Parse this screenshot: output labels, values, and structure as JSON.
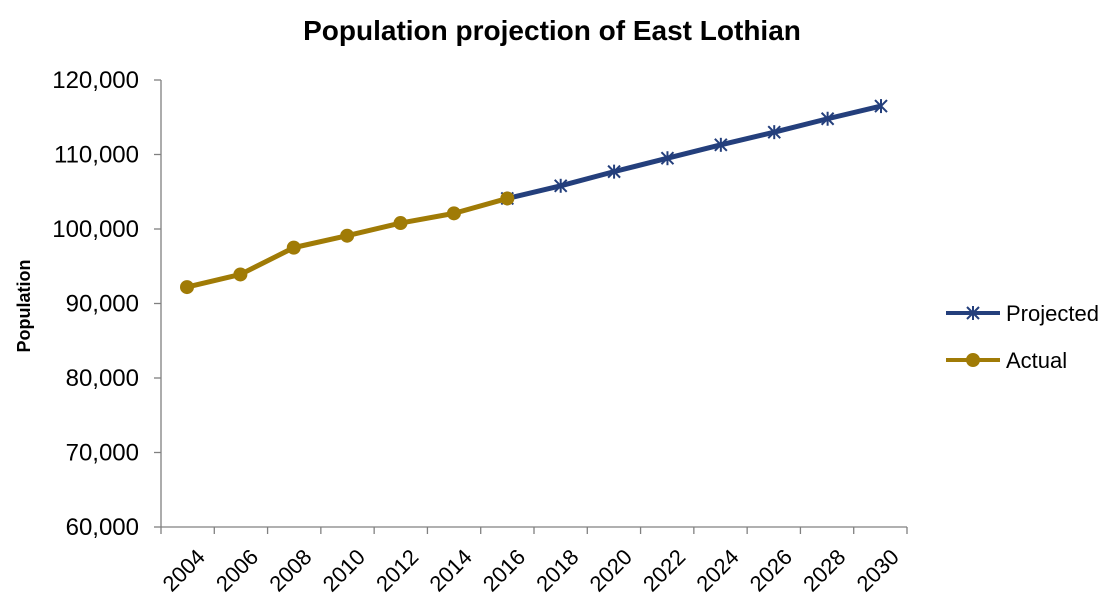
{
  "chart_data": {
    "type": "line",
    "title": "Population projection of East Lothian",
    "xlabel": "",
    "ylabel": "Population",
    "ylim": [
      60000,
      120000
    ],
    "yticks": [
      "60,000",
      "70,000",
      "80,000",
      "90,000",
      "100,000",
      "110,000",
      "120,000"
    ],
    "x": [
      2004,
      2006,
      2008,
      2010,
      2012,
      2014,
      2016,
      2018,
      2020,
      2022,
      2024,
      2026,
      2028,
      2030
    ],
    "xticks": [
      "2004",
      "2006",
      "2008",
      "2010",
      "2012",
      "2014",
      "2016",
      "2018",
      "2020",
      "2022",
      "2024",
      "2026",
      "2028",
      "2030"
    ],
    "grid": false,
    "legend_position": "right",
    "series": [
      {
        "name": "Projected",
        "color": "#243F7C",
        "marker": "asterisk",
        "x": [
          2016,
          2018,
          2020,
          2022,
          2024,
          2026,
          2028,
          2030
        ],
        "values": [
          104100,
          105800,
          107700,
          109500,
          111300,
          113000,
          114800,
          116500
        ]
      },
      {
        "name": "Actual",
        "color": "#A07B06",
        "marker": "circle",
        "x": [
          2004,
          2006,
          2008,
          2010,
          2012,
          2014,
          2016
        ],
        "values": [
          92200,
          93900,
          97500,
          99100,
          100800,
          102100,
          104100
        ]
      }
    ]
  }
}
